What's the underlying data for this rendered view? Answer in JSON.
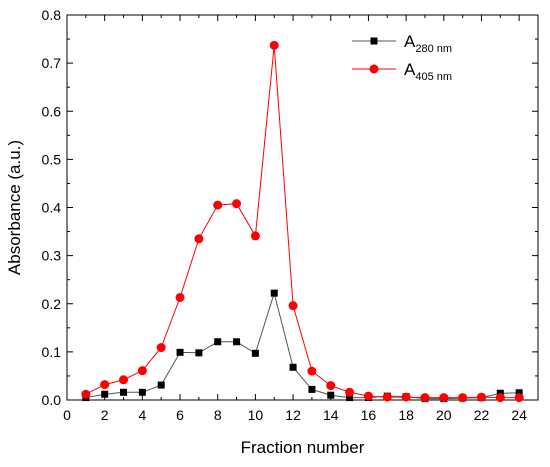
{
  "chart_data": {
    "type": "line",
    "title": "",
    "xlabel": "Fraction number",
    "ylabel": "Absorbance (a.u.)",
    "xlim": [
      0,
      25
    ],
    "ylim": [
      0,
      0.8
    ],
    "xticks": [
      0,
      2,
      4,
      6,
      8,
      10,
      12,
      14,
      16,
      18,
      20,
      22,
      24
    ],
    "xtick_labels": [
      "0",
      "2",
      "4",
      "6",
      "8",
      "10",
      "12",
      "14",
      "16",
      "18",
      "20",
      "22",
      "24"
    ],
    "yticks": [
      0.0,
      0.1,
      0.2,
      0.3,
      0.4,
      0.5,
      0.6,
      0.7,
      0.8
    ],
    "ytick_labels": [
      "0.0",
      "0.1",
      "0.2",
      "0.3",
      "0.4",
      "0.5",
      "0.6",
      "0.7",
      "0.8"
    ],
    "grid": false,
    "legend_position": "top-right",
    "series": [
      {
        "name_main": "A",
        "name_sub": "280 nm",
        "color": "#000000",
        "line_color": "#555555",
        "marker": "square",
        "x": [
          1,
          2,
          3,
          4,
          5,
          6,
          7,
          8,
          9,
          10,
          11,
          12,
          13,
          14,
          15,
          16,
          17,
          18,
          19,
          20,
          21,
          22,
          23,
          24
        ],
        "values": [
          0.005,
          0.012,
          0.016,
          0.016,
          0.031,
          0.099,
          0.098,
          0.121,
          0.121,
          0.097,
          0.222,
          0.068,
          0.022,
          0.01,
          0.005,
          0.005,
          0.008,
          0.007,
          0.003,
          0.003,
          0.004,
          0.005,
          0.014,
          0.015
        ]
      },
      {
        "name_main": "A",
        "name_sub": "405 nm",
        "color": "#ff0000",
        "line_color": "#ff0000",
        "marker": "circle",
        "x": [
          1,
          2,
          3,
          4,
          5,
          6,
          7,
          8,
          9,
          10,
          11,
          12,
          13,
          14,
          15,
          16,
          17,
          18,
          19,
          20,
          21,
          22,
          23,
          24
        ],
        "values": [
          0.012,
          0.032,
          0.042,
          0.061,
          0.109,
          0.213,
          0.335,
          0.405,
          0.408,
          0.341,
          0.737,
          0.196,
          0.06,
          0.03,
          0.016,
          0.008,
          0.006,
          0.006,
          0.005,
          0.005,
          0.005,
          0.006,
          0.005,
          0.005
        ]
      }
    ]
  }
}
